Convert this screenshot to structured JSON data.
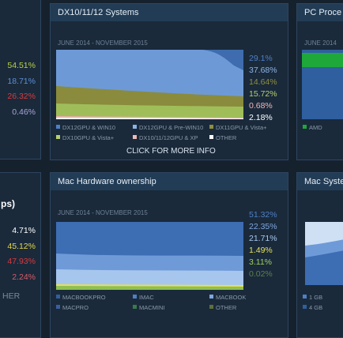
{
  "left_top": {
    "values": [
      {
        "text": "54.51%",
        "color": "#b9cf46"
      },
      {
        "text": "18.71%",
        "color": "#5b8fd6"
      },
      {
        "text": "26.32%",
        "color": "#d8393d"
      },
      {
        "text": "0.46%",
        "color": "#a9a3d8"
      }
    ]
  },
  "dx_panel": {
    "title": "DX10/11/12 Systems",
    "subtitle": "JUNE 2014 - NOVEMBER 2015",
    "values": [
      {
        "text": "29.1%",
        "color": "#4f7fc4"
      },
      {
        "text": "37.68%",
        "color": "#8cb3e6"
      },
      {
        "text": "14.64%",
        "color": "#8f8f3e"
      },
      {
        "text": "15.72%",
        "color": "#b5d06e"
      },
      {
        "text": "0.68%",
        "color": "#f0b8b8"
      },
      {
        "text": "2.18%",
        "color": "#ffffff"
      }
    ],
    "legend": [
      {
        "text": "DX12GPU & WIN10",
        "color": "#4f7fc4"
      },
      {
        "text": "DX12GPU & Pre-WIN10",
        "color": "#8cb3e6"
      },
      {
        "text": "DX11GPU & Vista+",
        "color": "#8f8f3e"
      },
      {
        "text": "DX10GPU & Vista+",
        "color": "#b5d06e"
      },
      {
        "text": "DX10/11/12GPU & XP",
        "color": "#f0b8b8"
      },
      {
        "text": "OTHER",
        "color": "#ffffff"
      }
    ],
    "link": "CLICK FOR MORE INFO"
  },
  "right_top": {
    "title": "PC Proce",
    "subtitle": "JUNE 2014",
    "legend": [
      {
        "text": "AMD",
        "color": "#1fa83a"
      }
    ]
  },
  "left_bottom": {
    "heading": "ps)",
    "values": [
      {
        "text": "4.71%",
        "color": "#ffffff"
      },
      {
        "text": "45.12%",
        "color": "#e6d84a"
      },
      {
        "text": "47.93%",
        "color": "#d8393d"
      },
      {
        "text": "2.24%",
        "color": "#d85a6a"
      }
    ],
    "other": "HER"
  },
  "mac_panel": {
    "title": "Mac Hardware ownership",
    "subtitle": "JUNE 2014 - NOVEMBER 2015",
    "values": [
      {
        "text": "51.32%",
        "color": "#4f7fc4"
      },
      {
        "text": "22.35%",
        "color": "#7fa6de"
      },
      {
        "text": "21.71%",
        "color": "#a9c8ee"
      },
      {
        "text": "1.49%",
        "color": "#e6e05a"
      },
      {
        "text": "3.11%",
        "color": "#9fcf5a"
      },
      {
        "text": "0.02%",
        "color": "#5f7f4a"
      }
    ],
    "legend": [
      {
        "text": "MACBOOKPRO",
        "color": "#2f5f9e"
      },
      {
        "text": "IMAC",
        "color": "#4f7fc4"
      },
      {
        "text": "MACBOOK",
        "color": "#7fa6de"
      },
      {
        "text": "MACPRO",
        "color": "#3a5ea0"
      },
      {
        "text": "MACMINI",
        "color": "#3a7a4a"
      },
      {
        "text": "OTHER",
        "color": "#5f6f3a"
      }
    ]
  },
  "right_bottom": {
    "title": "Mac Syste",
    "legend": [
      {
        "text": "1 GB",
        "color": "#4f7fc4"
      },
      {
        "text": "4 GB",
        "color": "#2f5f9e"
      }
    ]
  }
}
